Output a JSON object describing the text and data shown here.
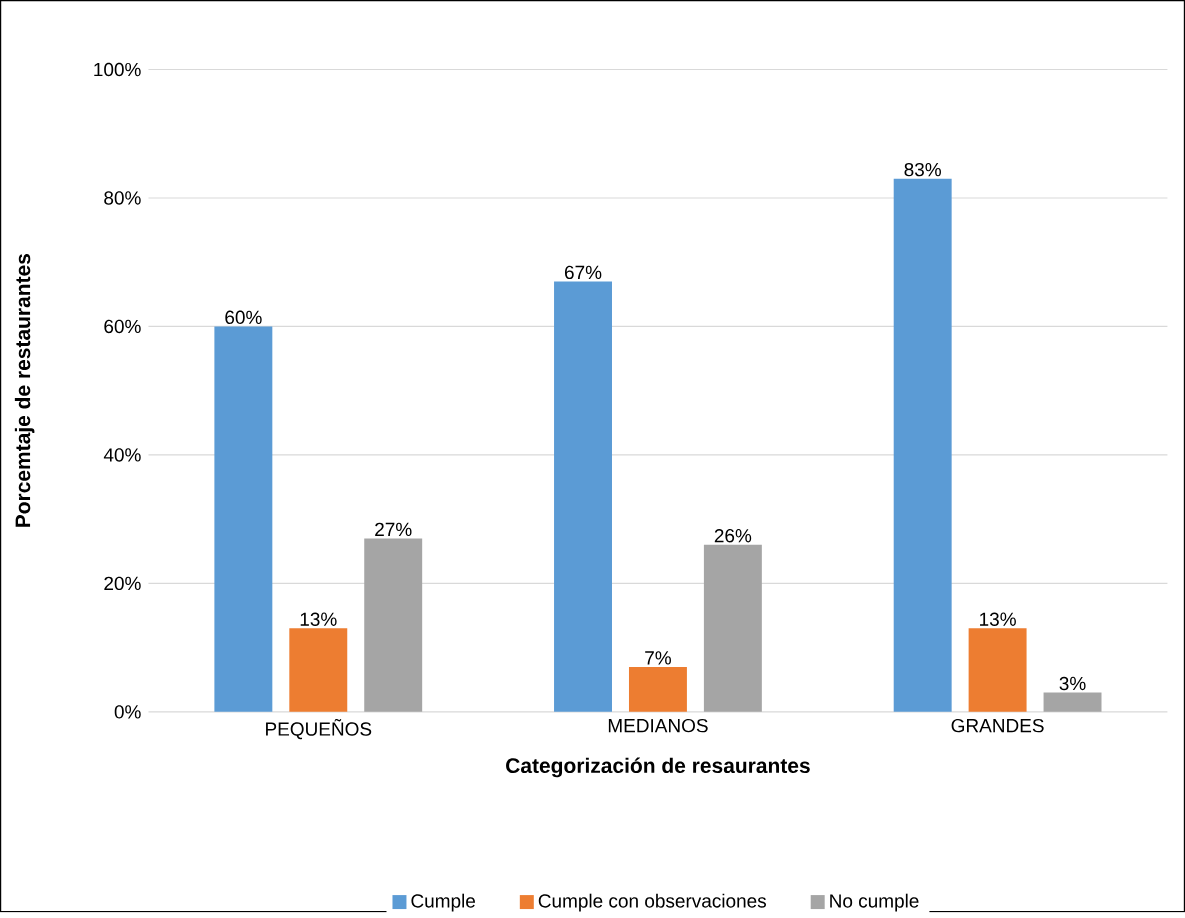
{
  "chart_data": {
    "type": "bar",
    "xlabel": "Categorización de resaurantes",
    "ylabel": "Porcemtaje de restaurantes",
    "categories": [
      "PEQUEÑOS",
      "MEDIANOS",
      "GRANDES"
    ],
    "series": [
      {
        "name": "Cumple",
        "color": "#5b9bd5",
        "values": [
          60,
          67,
          83
        ],
        "value_labels": [
          "60%",
          "67%",
          "83%"
        ]
      },
      {
        "name": "Cumple con observaciones",
        "color": "#ed7d31",
        "values": [
          13,
          7,
          13
        ],
        "value_labels": [
          "13%",
          "7%",
          "13%"
        ]
      },
      {
        "name": "No cumple",
        "color": "#a5a5a5",
        "values": [
          27,
          26,
          3
        ],
        "value_labels": [
          "27%",
          "26%",
          "3%"
        ]
      }
    ],
    "ylim": [
      0,
      100
    ],
    "yticks": [
      {
        "value": 0,
        "label": "0%"
      },
      {
        "value": 20,
        "label": "20%"
      },
      {
        "value": 40,
        "label": "40%"
      },
      {
        "value": 60,
        "label": "60%"
      },
      {
        "value": 80,
        "label": "80%"
      },
      {
        "value": 100,
        "label": "100%"
      }
    ],
    "grid": "y",
    "legend": "bottom"
  }
}
